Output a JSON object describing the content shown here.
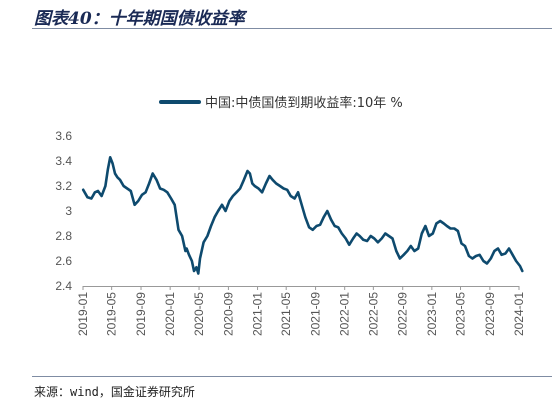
{
  "header": {
    "title": "图表40：十年期国债收益率"
  },
  "footer": {
    "source": "来源：wind，国金证券研究所"
  },
  "chart_data": {
    "type": "line",
    "title": "",
    "xlabel": "",
    "ylabel": "",
    "ylim": [
      2.4,
      3.6
    ],
    "yticks": [
      "2.4",
      "2.6",
      "2.8",
      "3",
      "3.2",
      "3.4",
      "3.6"
    ],
    "grid": false,
    "legend_position": "top-center",
    "x_tick_labels": [
      "2019-01",
      "2019-05",
      "2019-09",
      "2020-01",
      "2020-05",
      "2020-09",
      "2021-01",
      "2021-05",
      "2021-09",
      "2022-01",
      "2022-05",
      "2022-09",
      "2023-01",
      "2023-05",
      "2023-09",
      "2024-01"
    ],
    "series": [
      {
        "name": "中国:中债国债到期收益率:10年 %",
        "color": "#0e4a6e",
        "x": [
          "2019-01-02",
          "2019-01-20",
          "2019-02-05",
          "2019-02-20",
          "2019-03-05",
          "2019-03-20",
          "2019-04-05",
          "2019-04-15",
          "2019-04-25",
          "2019-05-05",
          "2019-05-15",
          "2019-05-25",
          "2019-06-05",
          "2019-06-20",
          "2019-07-05",
          "2019-07-20",
          "2019-08-05",
          "2019-08-20",
          "2019-09-05",
          "2019-09-20",
          "2019-10-05",
          "2019-10-20",
          "2019-11-05",
          "2019-11-20",
          "2019-12-05",
          "2019-12-20",
          "2020-01-05",
          "2020-01-20",
          "2020-02-05",
          "2020-02-20",
          "2020-03-05",
          "2020-03-10",
          "2020-03-20",
          "2020-04-01",
          "2020-04-10",
          "2020-04-20",
          "2020-04-28",
          "2020-05-05",
          "2020-05-20",
          "2020-06-05",
          "2020-06-20",
          "2020-07-05",
          "2020-07-20",
          "2020-08-05",
          "2020-08-20",
          "2020-09-05",
          "2020-09-20",
          "2020-10-05",
          "2020-10-20",
          "2020-11-05",
          "2020-11-20",
          "2020-11-30",
          "2020-12-10",
          "2020-12-20",
          "2021-01-05",
          "2021-01-20",
          "2021-02-05",
          "2021-02-20",
          "2021-03-05",
          "2021-03-20",
          "2021-04-05",
          "2021-04-20",
          "2021-05-05",
          "2021-05-20",
          "2021-06-05",
          "2021-06-20",
          "2021-07-05",
          "2021-07-20",
          "2021-08-05",
          "2021-08-20",
          "2021-09-05",
          "2021-09-20",
          "2021-10-05",
          "2021-10-20",
          "2021-11-05",
          "2021-11-20",
          "2021-12-05",
          "2021-12-20",
          "2022-01-05",
          "2022-01-20",
          "2022-02-05",
          "2022-02-20",
          "2022-03-05",
          "2022-03-20",
          "2022-04-05",
          "2022-04-20",
          "2022-05-05",
          "2022-05-20",
          "2022-06-05",
          "2022-06-20",
          "2022-07-05",
          "2022-07-20",
          "2022-08-05",
          "2022-08-20",
          "2022-09-05",
          "2022-09-20",
          "2022-10-05",
          "2022-10-20",
          "2022-11-05",
          "2022-11-20",
          "2022-12-05",
          "2022-12-20",
          "2023-01-05",
          "2023-01-20",
          "2023-02-05",
          "2023-02-20",
          "2023-03-05",
          "2023-03-20",
          "2023-04-05",
          "2023-04-20",
          "2023-05-05",
          "2023-05-20",
          "2023-06-05",
          "2023-06-20",
          "2023-07-05",
          "2023-07-20",
          "2023-08-05",
          "2023-08-20",
          "2023-09-05",
          "2023-09-20",
          "2023-10-05",
          "2023-10-20",
          "2023-11-05",
          "2023-11-20",
          "2023-12-05",
          "2023-12-20",
          "2024-01-05",
          "2024-01-15"
        ],
        "values": [
          3.17,
          3.11,
          3.1,
          3.15,
          3.16,
          3.12,
          3.2,
          3.33,
          3.43,
          3.38,
          3.3,
          3.27,
          3.25,
          3.2,
          3.18,
          3.16,
          3.05,
          3.08,
          3.13,
          3.15,
          3.22,
          3.3,
          3.25,
          3.18,
          3.17,
          3.15,
          3.1,
          3.05,
          2.85,
          2.8,
          2.68,
          2.7,
          2.65,
          2.6,
          2.52,
          2.55,
          2.5,
          2.62,
          2.75,
          2.8,
          2.88,
          2.95,
          3.0,
          3.05,
          3.0,
          3.08,
          3.12,
          3.15,
          3.18,
          3.25,
          3.32,
          3.3,
          3.22,
          3.2,
          3.18,
          3.15,
          3.22,
          3.28,
          3.25,
          3.22,
          3.2,
          3.18,
          3.17,
          3.12,
          3.1,
          3.15,
          3.05,
          2.95,
          2.87,
          2.85,
          2.88,
          2.89,
          2.95,
          3.0,
          2.93,
          2.88,
          2.87,
          2.82,
          2.78,
          2.73,
          2.78,
          2.82,
          2.8,
          2.77,
          2.76,
          2.8,
          2.78,
          2.75,
          2.78,
          2.82,
          2.8,
          2.78,
          2.68,
          2.62,
          2.65,
          2.68,
          2.72,
          2.68,
          2.7,
          2.82,
          2.88,
          2.8,
          2.82,
          2.9,
          2.92,
          2.9,
          2.88,
          2.86,
          2.86,
          2.84,
          2.74,
          2.72,
          2.64,
          2.62,
          2.64,
          2.65,
          2.6,
          2.58,
          2.62,
          2.68,
          2.7,
          2.65,
          2.66,
          2.7,
          2.65,
          2.6,
          2.56,
          2.52
        ]
      }
    ]
  }
}
